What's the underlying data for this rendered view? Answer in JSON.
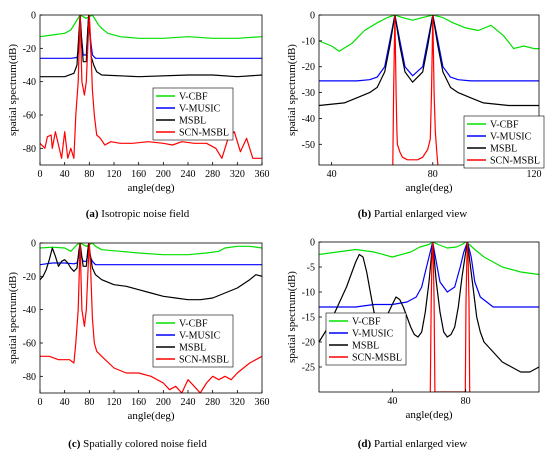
{
  "captions": [
    {
      "tag": "(a)",
      "text": "Isotropic noise field"
    },
    {
      "tag": "(b)",
      "text": "Partial enlarged view"
    },
    {
      "tag": "(c)",
      "text": "Spatially colored noise field"
    },
    {
      "tag": "(d)",
      "text": "Partial enlarged view"
    }
  ],
  "colors": {
    "V-CBF": "#00e000",
    "V-MUSIC": "#0000ff",
    "MSBL": "#000000",
    "SCN-MSBL": "#ff0000"
  },
  "chart_data": [
    {
      "type": "line",
      "xlabel": "angle(deg)",
      "ylabel": "spatial spectrum(dB)",
      "xlim": [
        0,
        360
      ],
      "ylim": [
        -90,
        0
      ],
      "xticks": [
        0,
        40,
        80,
        120,
        160,
        200,
        240,
        280,
        320,
        360
      ],
      "yticks": [
        0,
        -20,
        -40,
        -60,
        -80
      ],
      "legend": "middle-right",
      "series": [
        {
          "name": "V-CBF",
          "x": [
            0,
            20,
            40,
            50,
            55,
            60,
            65,
            70,
            75,
            80,
            85,
            90,
            95,
            100,
            110,
            130,
            160,
            200,
            240,
            280,
            320,
            360
          ],
          "y": [
            -13,
            -12,
            -11,
            -9,
            -6,
            -3,
            0,
            -1,
            -2,
            -1,
            0,
            -3,
            -6,
            -8,
            -11,
            -13,
            -14,
            -14,
            -13,
            -14,
            -14,
            -13
          ]
        },
        {
          "name": "V-MUSIC",
          "x": [
            0,
            50,
            60,
            63,
            65,
            67,
            70,
            75,
            77,
            79,
            81,
            85,
            90,
            100,
            200,
            360
          ],
          "y": [
            -26,
            -26,
            -25.5,
            -20,
            0,
            -12,
            -24,
            -24,
            -12,
            0,
            -12,
            -24,
            -26,
            -26,
            -26,
            -26
          ]
        },
        {
          "name": "MSBL",
          "x": [
            0,
            40,
            55,
            60,
            63,
            65,
            67,
            70,
            75,
            77,
            79,
            81,
            83,
            87,
            92,
            100,
            160,
            240,
            280,
            320,
            360
          ],
          "y": [
            -37,
            -37,
            -35,
            -30,
            -12,
            0,
            -12,
            -28,
            -28,
            -12,
            0,
            -12,
            -25,
            -30,
            -34,
            -36,
            -37,
            -36,
            -36,
            -37,
            -36
          ]
        },
        {
          "name": "SCN-MSBL",
          "x": [
            0,
            8,
            12,
            18,
            20,
            25,
            30,
            35,
            40,
            45,
            50,
            55,
            58,
            62,
            65,
            68,
            72,
            75,
            78,
            80,
            82,
            85,
            88,
            92,
            98,
            105,
            115,
            130,
            150,
            175,
            200,
            215,
            230,
            250,
            270,
            285,
            295,
            305,
            315,
            325,
            335,
            345,
            360
          ],
          "y": [
            -77,
            -80,
            -73,
            -72,
            -80,
            -70,
            -78,
            -86,
            -70,
            -86,
            -80,
            -86,
            -60,
            -40,
            0,
            -40,
            -48,
            -40,
            -15,
            0,
            -15,
            -45,
            -60,
            -72,
            -74,
            -78,
            -76,
            -77,
            -77,
            -76,
            -77,
            -78,
            -76,
            -77,
            -77,
            -80,
            -86,
            -74,
            -70,
            -82,
            -74,
            -86,
            -86
          ]
        }
      ]
    },
    {
      "type": "line",
      "xlabel": "angle(deg)",
      "ylabel": "spatial spectrum(dB)",
      "xlim": [
        35,
        122
      ],
      "ylim": [
        -58,
        0
      ],
      "xticks": [
        40,
        80,
        120
      ],
      "yticks": [
        0,
        -10,
        -20,
        -30,
        -40,
        -50
      ],
      "legend": "bottom-right",
      "series": [
        {
          "name": "V-CBF",
          "x": [
            35,
            40,
            43,
            48,
            53,
            58,
            62,
            65,
            68,
            72,
            76,
            80,
            84,
            88,
            93,
            98,
            103,
            108,
            112,
            116,
            120,
            122
          ],
          "y": [
            -10,
            -12,
            -14,
            -11,
            -6,
            -3,
            -1,
            0,
            -1,
            -2,
            -1,
            0,
            -1,
            -3,
            -5,
            -6,
            -4,
            -8,
            -13,
            -12,
            -13,
            -13
          ]
        },
        {
          "name": "V-MUSIC",
          "x": [
            35,
            50,
            55,
            58,
            61,
            63,
            65,
            67,
            69,
            72,
            76,
            78,
            80,
            82,
            84,
            87,
            90,
            95,
            100,
            120,
            122
          ],
          "y": [
            -25.5,
            -25.5,
            -25,
            -24,
            -20,
            -10,
            0,
            -10,
            -20,
            -23.5,
            -20,
            -10,
            0,
            -10,
            -20,
            -24,
            -25,
            -25.5,
            -25.5,
            -25.5,
            -25.5
          ]
        },
        {
          "name": "MSBL",
          "x": [
            35,
            45,
            50,
            55,
            58,
            61,
            63,
            65,
            67,
            69,
            72,
            76,
            78,
            80,
            82,
            84,
            87,
            90,
            95,
            100,
            110,
            122
          ],
          "y": [
            -35,
            -34,
            -32,
            -30,
            -28,
            -22,
            -12,
            0,
            -12,
            -22,
            -26,
            -22,
            -12,
            0,
            -12,
            -22,
            -28,
            -30,
            -32,
            -34,
            -35,
            -35
          ]
        },
        {
          "name": "SCN-MSBL",
          "x": [
            64.2,
            64.5,
            65,
            65.5,
            65.8,
            66,
            67,
            68,
            70,
            72,
            74,
            76,
            78,
            79,
            79.5,
            80,
            80.5,
            81,
            81.5,
            82
          ],
          "y": [
            -58,
            -30,
            0,
            -30,
            -45,
            -50,
            -53,
            -55,
            -56,
            -56,
            -56,
            -55,
            -52,
            -48,
            -30,
            0,
            -30,
            -45,
            -52,
            -58
          ]
        }
      ]
    },
    {
      "type": "line",
      "xlabel": "angle(deg)",
      "ylabel": "spatial spectrum(dB)",
      "xlim": [
        0,
        360
      ],
      "ylim": [
        -90,
        0
      ],
      "xticks": [
        0,
        40,
        80,
        120,
        160,
        200,
        240,
        280,
        320,
        360
      ],
      "yticks": [
        0,
        -20,
        -40,
        -60,
        -80
      ],
      "legend": "middle-right",
      "series": [
        {
          "name": "V-CBF",
          "x": [
            0,
            20,
            40,
            50,
            55,
            60,
            65,
            70,
            75,
            80,
            85,
            90,
            100,
            130,
            160,
            200,
            240,
            270,
            290,
            300,
            320,
            340,
            360
          ],
          "y": [
            -3,
            -2.5,
            -3,
            -5,
            -3,
            -1,
            0,
            -1,
            -2,
            -1,
            0,
            -2,
            -4,
            -5,
            -6,
            -7,
            -7,
            -6,
            -5,
            -3,
            -2,
            -2,
            -3
          ]
        },
        {
          "name": "V-MUSIC",
          "x": [
            0,
            10,
            20,
            40,
            55,
            60,
            63,
            65,
            67,
            70,
            75,
            77,
            79,
            81,
            85,
            90,
            100,
            200,
            360
          ],
          "y": [
            -13,
            -12.5,
            -12,
            -12,
            -12.5,
            -12,
            -8,
            0,
            -8,
            -11,
            -11,
            -8,
            0,
            -8,
            -11,
            -13,
            -13,
            -13,
            -13
          ]
        },
        {
          "name": "MSBL",
          "x": [
            0,
            5,
            10,
            15,
            20,
            25,
            30,
            35,
            40,
            45,
            50,
            55,
            60,
            63,
            65,
            67,
            70,
            75,
            77,
            79,
            81,
            85,
            90,
            100,
            120,
            140,
            160,
            180,
            200,
            220,
            240,
            260,
            280,
            300,
            320,
            340,
            350,
            360
          ],
          "y": [
            -22,
            -20,
            -16,
            -10,
            -3,
            -8,
            -14,
            -11,
            -10,
            -12,
            -15,
            -17,
            -15,
            -5,
            0,
            -6,
            -14,
            -14,
            -6,
            0,
            -6,
            -15,
            -19,
            -22,
            -25,
            -26,
            -28,
            -30,
            -32,
            -33,
            -34,
            -34,
            -33,
            -30,
            -27,
            -22,
            -19,
            -20
          ]
        },
        {
          "name": "SCN-MSBL",
          "x": [
            0,
            15,
            30,
            40,
            48,
            55,
            58,
            62,
            65,
            68,
            72,
            75,
            78,
            80,
            82,
            85,
            88,
            92,
            100,
            120,
            140,
            160,
            180,
            200,
            210,
            220,
            230,
            240,
            250,
            260,
            270,
            280,
            290,
            300,
            310,
            320,
            330,
            340,
            350,
            360
          ],
          "y": [
            -68,
            -68,
            -70,
            -70,
            -70,
            -72,
            -60,
            -40,
            0,
            -40,
            -50,
            -40,
            -15,
            0,
            -15,
            -45,
            -60,
            -65,
            -68,
            -75,
            -78,
            -78,
            -80,
            -84,
            -88,
            -86,
            -90,
            -82,
            -86,
            -90,
            -84,
            -80,
            -82,
            -80,
            -82,
            -78,
            -75,
            -72,
            -70,
            -68
          ]
        }
      ]
    },
    {
      "type": "line",
      "xlabel": "angle(deg)",
      "ylabel": "spatial spectrum(dB)",
      "xlim": [
        0,
        120
      ],
      "ylim": [
        -30,
        0
      ],
      "xticks": [
        40,
        80
      ],
      "yticks": [
        0,
        -5,
        -10,
        -15,
        -20,
        -25
      ],
      "legend": "bottom-left",
      "series": [
        {
          "name": "V-CBF",
          "x": [
            0,
            10,
            20,
            30,
            40,
            50,
            55,
            60,
            62,
            65,
            70,
            75,
            78,
            80,
            82,
            85,
            90,
            100,
            110,
            120
          ],
          "y": [
            -2.5,
            -2,
            -1.5,
            -2,
            -3,
            -2,
            -1,
            -0.5,
            0,
            -0.5,
            -1.2,
            -1,
            -0.5,
            0,
            -0.5,
            -1.5,
            -3,
            -5,
            -6,
            -6.5
          ]
        },
        {
          "name": "V-MUSIC",
          "x": [
            0,
            10,
            20,
            30,
            40,
            48,
            53,
            56,
            58,
            60,
            62,
            64,
            66,
            70,
            74,
            77,
            79,
            81,
            83,
            85,
            88,
            95,
            105,
            120
          ],
          "y": [
            -13,
            -13,
            -13,
            -12.5,
            -12.5,
            -12,
            -11,
            -9,
            -6,
            -3,
            0,
            -4,
            -8,
            -10,
            -9,
            -5,
            -2,
            0,
            -3,
            -8,
            -11,
            -13,
            -13,
            -13
          ]
        },
        {
          "name": "MSBL",
          "x": [
            0,
            5,
            10,
            15,
            18,
            20,
            22,
            24,
            26,
            28,
            30,
            32,
            34,
            36,
            38,
            40,
            42,
            44,
            46,
            48,
            50,
            52,
            54,
            56,
            58,
            60,
            62,
            64,
            66,
            68,
            70,
            72,
            74,
            76,
            78,
            80,
            81,
            82,
            84,
            86,
            88,
            90,
            95,
            100,
            105,
            110,
            115,
            120
          ],
          "y": [
            -20,
            -17,
            -13,
            -9,
            -6,
            -4,
            -2.5,
            -3,
            -6,
            -10,
            -14,
            -16,
            -17,
            -16,
            -14,
            -12.5,
            -11,
            -11.5,
            -13,
            -15,
            -17,
            -18.5,
            -19,
            -18,
            -14,
            -8,
            0,
            -8,
            -14,
            -18,
            -19,
            -18.5,
            -17,
            -13,
            -7,
            -2,
            0,
            -3,
            -9,
            -15,
            -18,
            -20,
            -22,
            -24,
            -25,
            -26,
            -26,
            -25
          ]
        },
        {
          "name": "SCN-MSBL",
          "x": [
            60.7,
            61.2,
            61.6,
            62,
            62.4,
            62.8,
            63.2,
            79.8,
            80.2,
            80.6,
            81,
            81.4,
            81.8,
            82.2
          ],
          "y": [
            -30,
            -12,
            -4,
            0,
            -4,
            -12,
            -30,
            -30,
            -12,
            -4,
            0,
            -4,
            -12,
            -30
          ]
        }
      ]
    }
  ]
}
